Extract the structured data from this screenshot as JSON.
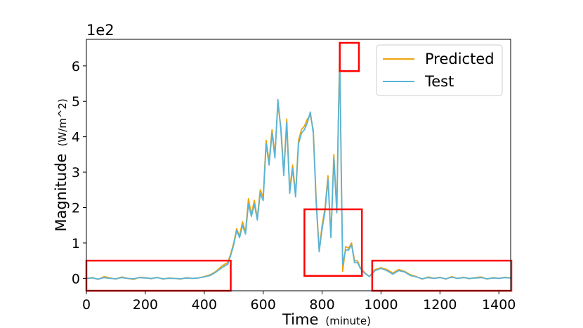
{
  "chart_data": {
    "type": "line",
    "title": "",
    "xlabel": "Time",
    "xlabel_unit": "(minute)",
    "ylabel": "Magnitude",
    "ylabel_unit": "(W/m^2)",
    "y_offset_label": "1e2",
    "xlim": [
      0,
      1440
    ],
    "ylim": [
      -0.35,
      6.75
    ],
    "x_ticks": [
      0,
      200,
      400,
      600,
      800,
      1000,
      1200,
      1400
    ],
    "y_ticks": [
      0,
      1,
      2,
      3,
      4,
      5,
      6
    ],
    "grid": false,
    "legend_position": "top-right",
    "colors": {
      "Predicted": "#f0a30a",
      "Test": "#5ab4d6",
      "highlight": "#ff0000"
    },
    "series": [
      {
        "name": "Predicted",
        "x": [
          0,
          20,
          40,
          60,
          80,
          100,
          120,
          140,
          160,
          180,
          200,
          220,
          240,
          260,
          280,
          300,
          320,
          340,
          360,
          380,
          400,
          420,
          440,
          460,
          480,
          490,
          500,
          510,
          520,
          530,
          540,
          550,
          560,
          570,
          580,
          590,
          600,
          610,
          620,
          630,
          640,
          650,
          660,
          670,
          680,
          690,
          700,
          710,
          720,
          730,
          740,
          750,
          760,
          770,
          780,
          790,
          800,
          810,
          820,
          830,
          840,
          850,
          855,
          860,
          865,
          870,
          880,
          890,
          900,
          910,
          920,
          930,
          940,
          960,
          980,
          1000,
          1020,
          1040,
          1060,
          1080,
          1100,
          1120,
          1140,
          1160,
          1180,
          1200,
          1220,
          1240,
          1260,
          1280,
          1300,
          1320,
          1340,
          1360,
          1380,
          1400,
          1420,
          1440
        ],
        "y": [
          0.0,
          0.02,
          -0.03,
          0.05,
          0.01,
          -0.02,
          0.04,
          0.0,
          -0.03,
          0.03,
          0.02,
          -0.01,
          0.03,
          -0.02,
          0.01,
          0.0,
          -0.02,
          0.02,
          0.0,
          0.01,
          0.05,
          0.1,
          0.2,
          0.35,
          0.45,
          0.7,
          1.0,
          1.4,
          1.2,
          1.6,
          1.3,
          2.25,
          1.8,
          2.2,
          1.7,
          2.5,
          2.3,
          3.9,
          3.3,
          4.2,
          3.5,
          4.9,
          4.3,
          3.0,
          4.5,
          2.5,
          3.2,
          2.4,
          3.9,
          4.2,
          4.3,
          4.5,
          4.6,
          4.2,
          2.2,
          0.8,
          1.5,
          2.0,
          2.9,
          1.2,
          3.5,
          1.9,
          4.4,
          6.45,
          3.0,
          0.2,
          0.9,
          0.85,
          1.0,
          0.5,
          0.5,
          0.3,
          0.2,
          0.05,
          0.25,
          0.3,
          0.25,
          0.15,
          0.25,
          0.2,
          0.1,
          0.05,
          -0.02,
          0.04,
          0.0,
          0.03,
          -0.02,
          0.05,
          0.0,
          0.03,
          -0.01,
          0.02,
          0.04,
          -0.02,
          0.02,
          0.0,
          0.03,
          0.01
        ]
      },
      {
        "name": "Test",
        "x": [
          0,
          20,
          40,
          60,
          80,
          100,
          120,
          140,
          160,
          180,
          200,
          220,
          240,
          260,
          280,
          300,
          320,
          340,
          360,
          380,
          400,
          420,
          440,
          460,
          480,
          490,
          500,
          510,
          520,
          530,
          540,
          550,
          560,
          570,
          580,
          590,
          600,
          610,
          620,
          630,
          640,
          650,
          660,
          670,
          680,
          690,
          700,
          710,
          720,
          730,
          740,
          750,
          760,
          770,
          780,
          790,
          800,
          810,
          820,
          830,
          840,
          850,
          855,
          860,
          865,
          870,
          880,
          890,
          900,
          910,
          920,
          930,
          940,
          960,
          980,
          1000,
          1020,
          1040,
          1060,
          1080,
          1100,
          1120,
          1140,
          1160,
          1180,
          1200,
          1220,
          1240,
          1260,
          1280,
          1300,
          1320,
          1340,
          1360,
          1380,
          1400,
          1420,
          1440
        ],
        "y": [
          0.0,
          0.01,
          -0.02,
          0.02,
          0.0,
          -0.01,
          0.02,
          0.0,
          -0.01,
          0.02,
          0.01,
          0.0,
          0.02,
          -0.01,
          0.0,
          0.0,
          -0.01,
          0.01,
          0.0,
          0.01,
          0.04,
          0.08,
          0.18,
          0.3,
          0.4,
          0.65,
          0.95,
          1.35,
          1.15,
          1.5,
          1.25,
          2.1,
          1.75,
          2.1,
          1.65,
          2.4,
          2.2,
          3.8,
          3.2,
          4.1,
          3.4,
          5.05,
          4.2,
          2.9,
          4.4,
          2.4,
          3.1,
          2.3,
          3.8,
          4.1,
          4.2,
          4.4,
          4.7,
          4.1,
          2.1,
          0.75,
          1.4,
          1.9,
          2.8,
          1.15,
          3.4,
          1.85,
          4.3,
          6.2,
          3.1,
          0.4,
          0.8,
          0.8,
          0.95,
          0.45,
          0.45,
          0.28,
          0.18,
          0.05,
          0.22,
          0.28,
          0.22,
          0.12,
          0.22,
          0.18,
          0.08,
          0.04,
          -0.01,
          0.02,
          0.0,
          0.02,
          -0.01,
          0.03,
          0.0,
          0.02,
          0.0,
          0.01,
          0.02,
          -0.01,
          0.01,
          0.0,
          0.02,
          0.01
        ]
      }
    ],
    "highlight_boxes": [
      {
        "x0": 0,
        "x1": 490,
        "y0": -0.35,
        "y1": 0.5
      },
      {
        "x0": 740,
        "x1": 935,
        "y0": 0.07,
        "y1": 1.95
      },
      {
        "x0": 860,
        "x1": 1510,
        "y0": 5.85,
        "y1": 6.65
      },
      {
        "x0": 970,
        "x1": 1440,
        "y0": -0.35,
        "y1": 0.5
      }
    ]
  }
}
